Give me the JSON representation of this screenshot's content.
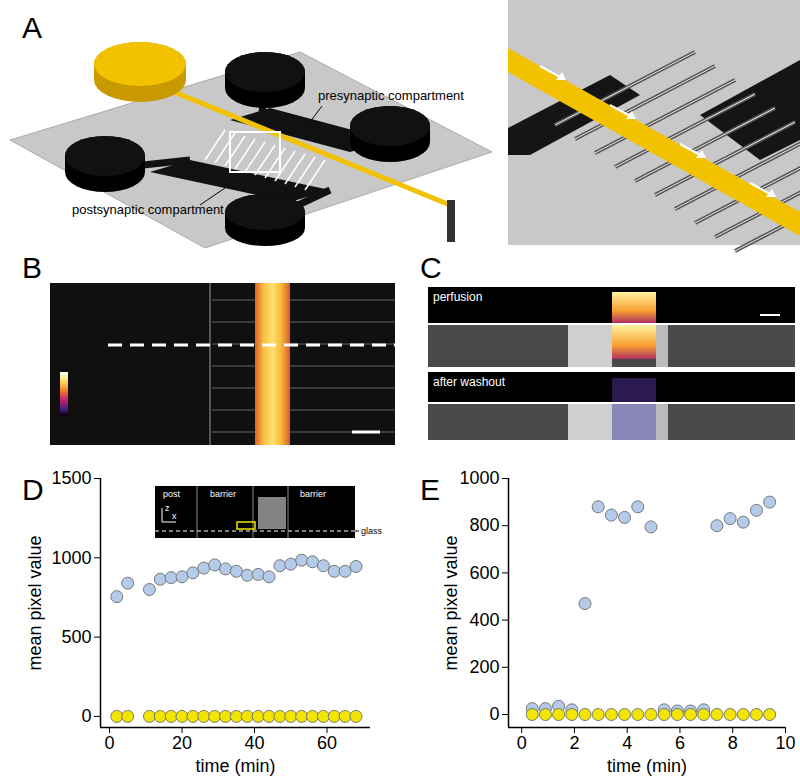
{
  "panels": {
    "A": {
      "label": "A",
      "texts": [
        "presynaptic compartment",
        "postsynaptic compartment"
      ]
    },
    "B": {
      "label": "B"
    },
    "C": {
      "label": "C",
      "texts": [
        "perfusion",
        "after washout"
      ]
    }
  },
  "chart_data": [
    {
      "panel_label": "D",
      "type": "scatter",
      "marker": "circle",
      "xlabel": "time (min)",
      "ylabel": "mean pixel value",
      "x": [
        2,
        5,
        11,
        14,
        17,
        20,
        23,
        26,
        29,
        32,
        35,
        38,
        41,
        44,
        47,
        50,
        53,
        56,
        59,
        62,
        65,
        68
      ],
      "series": [
        {
          "color": "#b3cbe9",
          "values": [
            755,
            840,
            800,
            865,
            875,
            880,
            905,
            935,
            955,
            930,
            915,
            890,
            895,
            880,
            950,
            960,
            985,
            975,
            950,
            915,
            915,
            945
          ]
        },
        {
          "color": "#f2e600",
          "values": [
            0,
            0,
            0,
            0,
            0,
            0,
            0,
            0,
            0,
            0,
            0,
            0,
            0,
            0,
            0,
            0,
            0,
            0,
            0,
            0,
            0,
            0
          ]
        }
      ],
      "xlim": [
        -2.5,
        72
      ],
      "xticks": [
        0,
        20,
        40,
        60
      ],
      "ylim": [
        -70,
        1500
      ],
      "yticks": [
        0,
        500,
        1000,
        1500
      ],
      "inset_labels": {
        "columns": [
          "post",
          "barrier",
          "barrier"
        ],
        "axes": [
          "z",
          "x"
        ],
        "baseline": "glass"
      }
    },
    {
      "panel_label": "E",
      "type": "scatter",
      "marker": "circle",
      "xlabel": "time (min)",
      "ylabel": "mean pixel value",
      "x": [
        0.4,
        0.9,
        1.4,
        1.9,
        2.4,
        2.9,
        3.4,
        3.9,
        4.4,
        4.9,
        5.4,
        5.9,
        6.4,
        6.9,
        7.4,
        7.9,
        8.4,
        8.9,
        9.4
      ],
      "series": [
        {
          "color": "#b3cbe9",
          "values": [
            25,
            25,
            35,
            20,
            470,
            880,
            845,
            835,
            880,
            795,
            20,
            15,
            15,
            20,
            800,
            830,
            815,
            865,
            900
          ]
        },
        {
          "color": "#f2e600",
          "values": [
            0,
            0,
            0,
            0,
            0,
            0,
            0,
            0,
            0,
            0,
            0,
            0,
            0,
            0,
            0,
            0,
            0,
            0,
            0
          ]
        }
      ],
      "xlim": [
        -0.5,
        10
      ],
      "xticks": [
        0,
        2,
        4,
        6,
        8,
        10
      ],
      "ylim": [
        -55,
        1000
      ],
      "yticks": [
        0,
        200,
        400,
        600,
        800,
        1000
      ]
    }
  ]
}
